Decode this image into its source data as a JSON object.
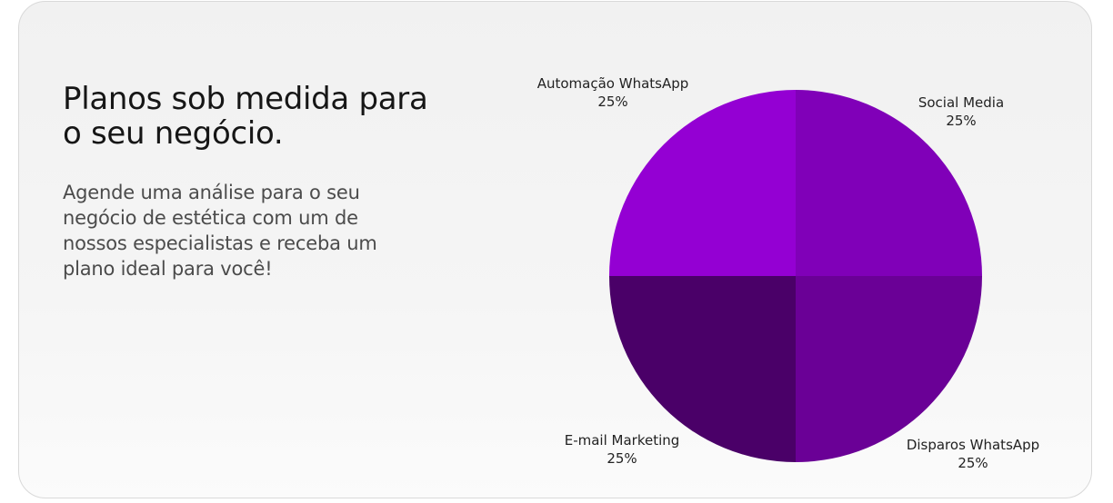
{
  "hero": {
    "headline": "Planos sob medida para o seu negócio.",
    "description": "Agende uma análise para o seu negócio de estética com um de nossos especialistas e receba um plano ideal para você!"
  },
  "chart_data": {
    "type": "pie",
    "categories": [
      "Social Media",
      "Disparos WhatsApp",
      "E-mail Marketing",
      "Automação WhatsApp"
    ],
    "values": [
      25,
      25,
      25,
      25
    ],
    "value_labels": [
      "25%",
      "25%",
      "25%",
      "25%"
    ],
    "colors": [
      "#8000b8",
      "#6a0096",
      "#4a0068",
      "#9400d3"
    ],
    "start": "top",
    "direction": "clockwise",
    "legend": "none"
  }
}
